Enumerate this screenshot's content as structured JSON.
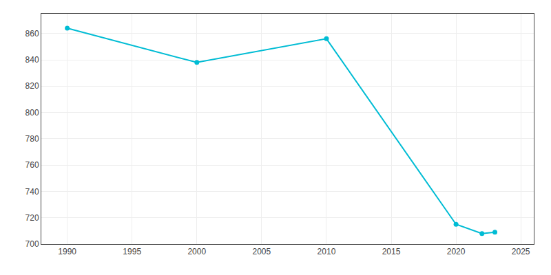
{
  "chart_data": {
    "type": "line",
    "x": [
      1990,
      2000,
      2010,
      2020,
      2022,
      2023
    ],
    "values": [
      864,
      838,
      856,
      715,
      708,
      709
    ],
    "color": "#00BCD4",
    "marker": "circle",
    "line_style": "solid",
    "xlim": [
      1988,
      2026
    ],
    "ylim": [
      700,
      875
    ],
    "xticks": [
      1990,
      1995,
      2000,
      2005,
      2010,
      2015,
      2020,
      2025
    ],
    "yticks": [
      700,
      720,
      740,
      760,
      780,
      800,
      820,
      840,
      860
    ],
    "grid": true
  }
}
